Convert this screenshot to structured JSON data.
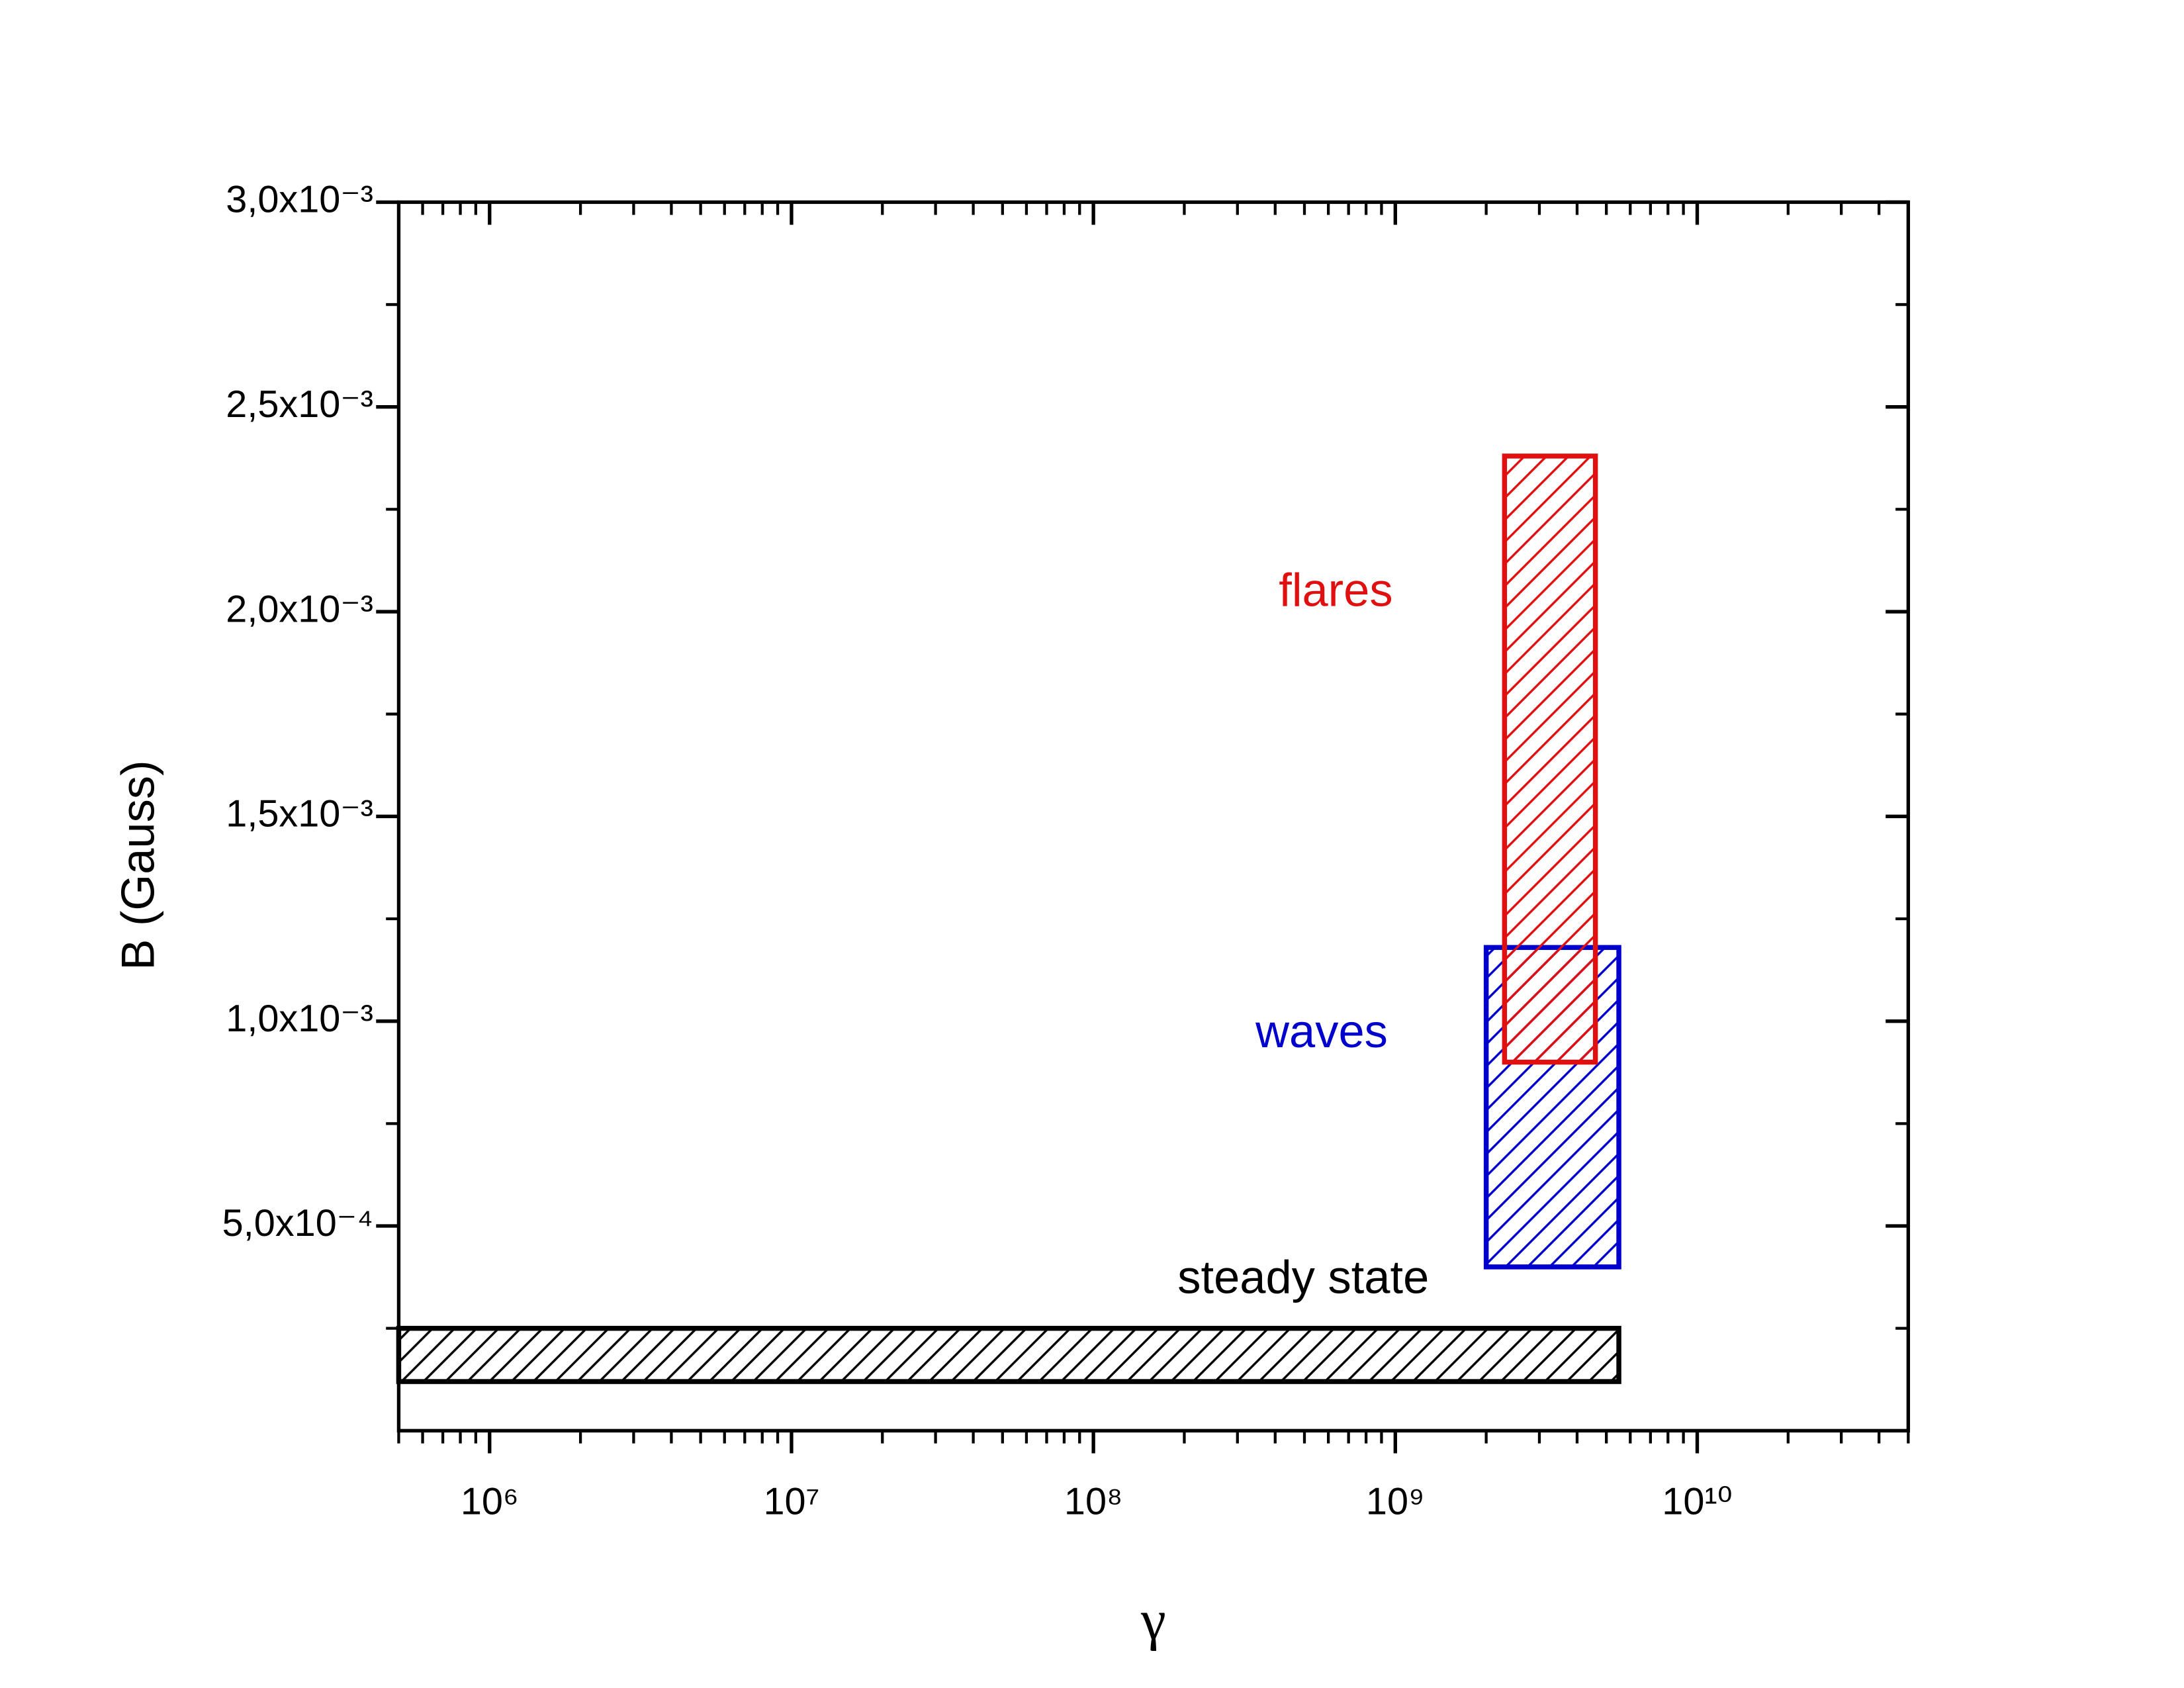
{
  "chart_data": {
    "type": "rect",
    "x_label": "γ",
    "y_label": "B (Gauss)",
    "xscale": "log",
    "xlim": [
      500000,
      50000000000
    ],
    "xticks": [
      {
        "value": 1000000,
        "label": "10⁶"
      },
      {
        "value": 10000000,
        "label": "10⁷"
      },
      {
        "value": 100000000,
        "label": "10⁸"
      },
      {
        "value": 1000000000,
        "label": "10⁹"
      },
      {
        "value": 10000000000,
        "label": "10¹⁰"
      }
    ],
    "ylim": [
      0,
      0.003
    ],
    "yticks": [
      {
        "value": 0.0005,
        "label": "5,0x10⁻⁴"
      },
      {
        "value": 0.001,
        "label": "1,0x10⁻³"
      },
      {
        "value": 0.0015,
        "label": "1,5x10⁻³"
      },
      {
        "value": 0.002,
        "label": "2,0x10⁻³"
      },
      {
        "value": 0.0025,
        "label": "2,5x10⁻³"
      },
      {
        "value": 0.003,
        "label": "3,0x10⁻³"
      }
    ],
    "series": [
      {
        "name": "steady state",
        "color": "#000000",
        "x": [
          500000,
          5500000000
        ],
        "y": [
          0.00012,
          0.00025
        ]
      },
      {
        "name": "waves",
        "color": "#0000cc",
        "x": [
          2000000000,
          5500000000
        ],
        "y": [
          0.0004,
          0.00118
        ]
      },
      {
        "name": "flares",
        "color": "#e01010",
        "x": [
          2300000000,
          4600000000
        ],
        "y": [
          0.0009,
          0.00238
        ]
      }
    ]
  }
}
